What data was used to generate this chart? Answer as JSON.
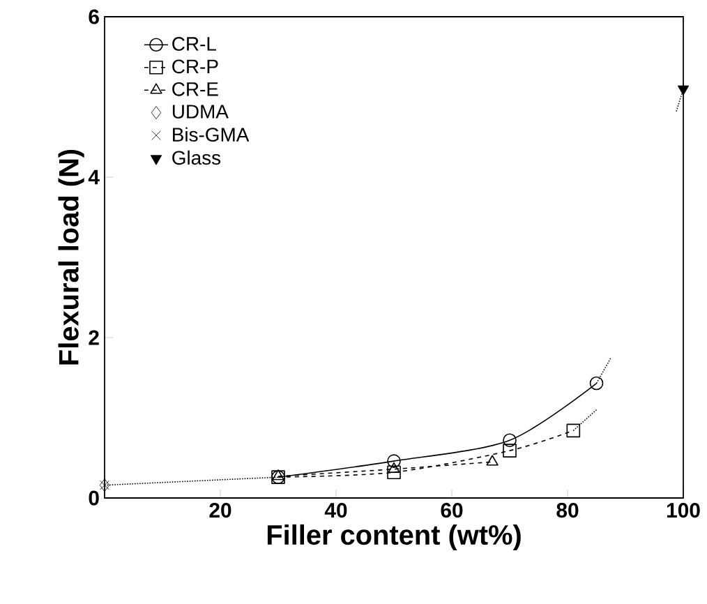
{
  "chart_data": {
    "type": "line",
    "xlabel": "Filler content (wt%)",
    "ylabel": "Flexural load (N)",
    "xlim": [
      0,
      100
    ],
    "ylim": [
      0,
      6
    ],
    "xticks": [
      20,
      40,
      60,
      80,
      100
    ],
    "yticks": [
      0,
      2,
      4,
      6
    ],
    "grid": false,
    "legend": "top left",
    "series": [
      {
        "name": "CR-L",
        "color": "#000000",
        "marker": "circle",
        "line_style": "solid",
        "x": [
          30,
          50,
          70,
          85
        ],
        "values": [
          0.26,
          0.46,
          0.72,
          1.43
        ]
      },
      {
        "name": "CR-P",
        "color": "#000000",
        "marker": "square",
        "line_style": "dashed",
        "x": [
          30,
          50,
          70,
          81
        ],
        "values": [
          0.26,
          0.32,
          0.59,
          0.84
        ]
      },
      {
        "name": "CR-E",
        "color": "#000000",
        "marker": "triangle",
        "line_style": "dashed",
        "x": [
          30,
          50,
          67
        ],
        "values": [
          0.27,
          0.36,
          0.45
        ]
      },
      {
        "name": "UDMA",
        "type": "scatter",
        "color": "#000000",
        "marker": "diamond",
        "x": [
          0
        ],
        "values": [
          0.16
        ]
      },
      {
        "name": "Bis-GMA",
        "type": "scatter",
        "color": "#000000",
        "marker": "cross",
        "x": [
          0
        ],
        "values": [
          0.16
        ]
      },
      {
        "name": "Glass",
        "type": "scatter",
        "color": "#000000",
        "marker": "triangle",
        "x": [
          100
        ],
        "values": [
          5.1
        ]
      },
      {
        "color": "#000000",
        "marker": "none",
        "line_style": "dotted",
        "x": [
          0,
          30
        ],
        "values": [
          0.16,
          0.26
        ]
      },
      {
        "color": "#000000",
        "marker": "none",
        "line_style": "dotted",
        "x": [
          85,
          87.5
        ],
        "values": [
          1.43,
          1.75
        ]
      },
      {
        "color": "#000000",
        "marker": "none",
        "line_style": "dotted",
        "x": [
          81,
          85
        ],
        "values": [
          0.84,
          1.1
        ]
      },
      {
        "color": "#000000",
        "marker": "none",
        "line_style": "dotted",
        "x": [
          98.8,
          100
        ],
        "values": [
          4.82,
          5.1
        ]
      }
    ]
  }
}
